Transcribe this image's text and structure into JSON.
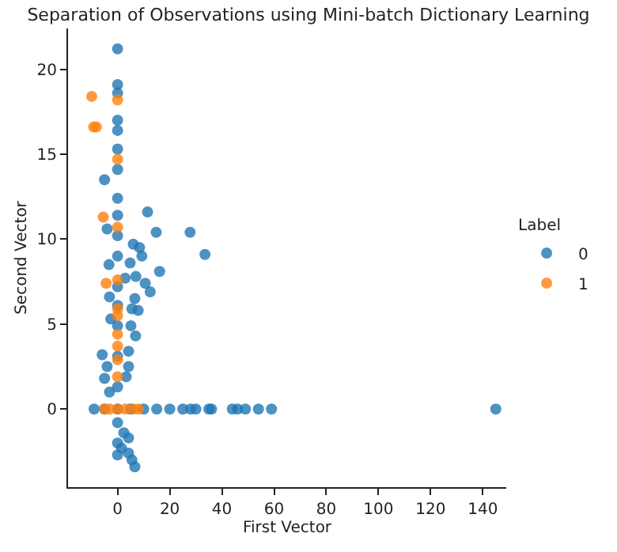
{
  "chart_data": {
    "type": "scatter",
    "title": "Separation of Observations using Mini-batch Dictionary Learning",
    "xlabel": "First Vector",
    "ylabel": "Second Vector",
    "legend_title": "Label",
    "legend": "right",
    "marker": "circle",
    "xlim": [
      -19,
      149
    ],
    "xticks": [
      0,
      20,
      40,
      60,
      80,
      100,
      120,
      140
    ],
    "ylim": [
      -4.6,
      22.4
    ],
    "yticks": [
      0,
      5,
      10,
      15,
      20
    ],
    "series": [
      {
        "name": "0",
        "color": "#1f77b4",
        "x": [
          0,
          0,
          0,
          0,
          0,
          0,
          0,
          -5,
          0,
          0,
          11.5,
          14.8,
          27.8,
          33.5,
          -4,
          0,
          0,
          6,
          8.4,
          9.3,
          16.1,
          4.8,
          -3.3,
          2.9,
          7,
          12.5,
          10.6,
          6.6,
          5.5,
          7.9,
          -3.1,
          0,
          0,
          -2.6,
          5.1,
          6.9,
          4.2,
          -5.9,
          -4,
          -5,
          -3.1,
          0,
          0,
          0,
          3.3,
          4.2,
          -9,
          -5,
          0,
          5,
          10,
          15,
          20,
          25,
          28,
          30,
          35,
          36,
          44,
          46,
          49,
          54,
          59,
          145,
          0,
          0,
          0,
          2.4,
          4.2,
          4.2,
          5.5,
          6.6,
          1.5
        ],
        "values": [
          21.2,
          19.1,
          18.6,
          17.0,
          16.4,
          15.3,
          14.1,
          13.5,
          12.4,
          11.4,
          11.6,
          10.4,
          10.4,
          9.1,
          10.6,
          10.2,
          9.0,
          9.7,
          9.5,
          9.0,
          8.1,
          8.6,
          8.5,
          7.7,
          7.8,
          6.9,
          7.4,
          6.5,
          5.9,
          5.8,
          6.6,
          7.2,
          6.1,
          5.3,
          4.9,
          4.3,
          3.4,
          3.2,
          2.5,
          1.8,
          1.0,
          4.9,
          3.1,
          1.3,
          1.9,
          2.5,
          0,
          0,
          0,
          0,
          0,
          0,
          0,
          0,
          0,
          0,
          0,
          0,
          0,
          0,
          0,
          0,
          0,
          0,
          -0.8,
          -2.0,
          -2.7,
          -1.4,
          -1.7,
          -2.6,
          -3.0,
          -3.4,
          -2.3
        ]
      },
      {
        "name": "1",
        "color": "#ff7f0e",
        "x": [
          -9.9,
          -9.2,
          -8.1,
          0,
          0,
          -5.5,
          0,
          -4.4,
          0,
          0,
          0,
          0,
          0,
          0,
          0,
          -5,
          -3,
          0,
          3,
          6,
          8
        ],
        "values": [
          18.4,
          16.6,
          16.6,
          18.2,
          14.7,
          11.3,
          10.7,
          7.4,
          7.6,
          5.9,
          5.5,
          4.4,
          3.7,
          2.9,
          1.9,
          0,
          0,
          0,
          0,
          0,
          0
        ]
      }
    ]
  }
}
